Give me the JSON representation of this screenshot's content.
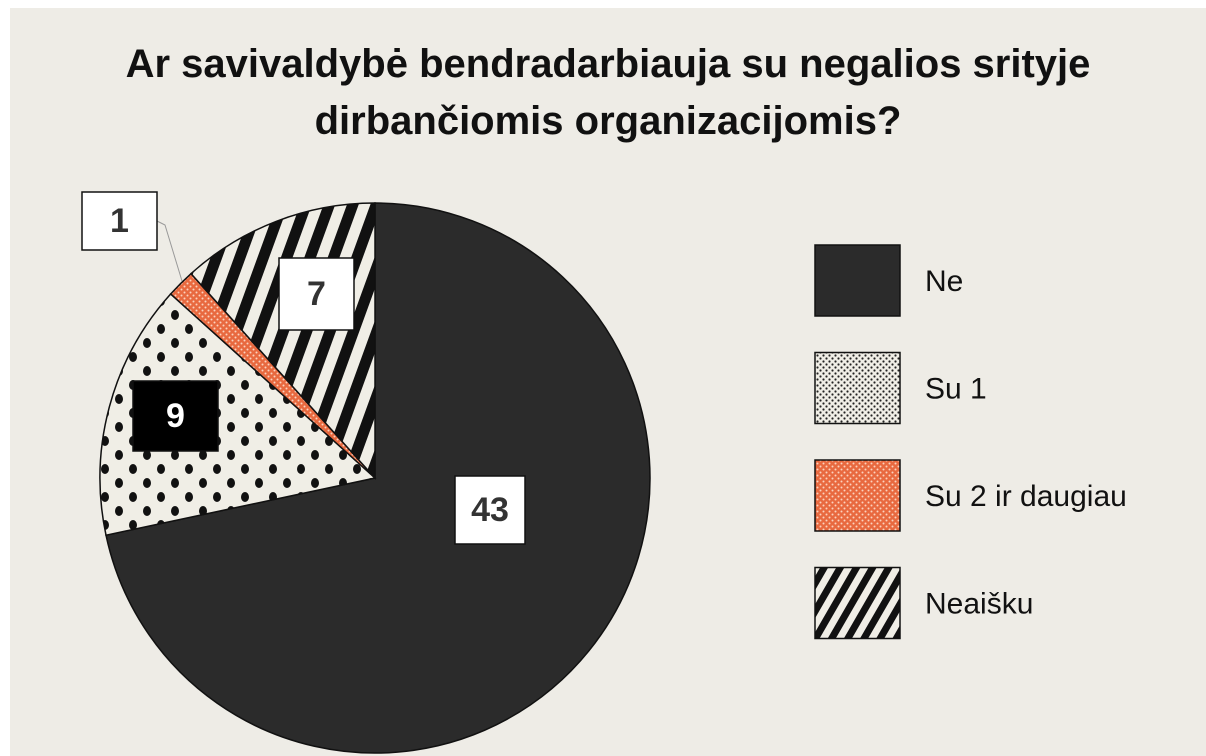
{
  "chart_data": {
    "type": "pie",
    "title": "Ar savivaldybė bendradarbiauja su negalios srityje\ndirbančiomis organizacijomis?",
    "categories": [
      "Ne",
      "Su 1",
      "Su 2 ir daugiau",
      "Neaišku"
    ],
    "values": [
      43,
      9,
      1,
      7
    ],
    "colors": [
      "#2b2b2b",
      "#f0eee6",
      "#e8693f",
      "#f0eee6"
    ],
    "patterns": [
      "solid",
      "dots",
      "fine-dots",
      "stripes"
    ],
    "legend": "right"
  }
}
